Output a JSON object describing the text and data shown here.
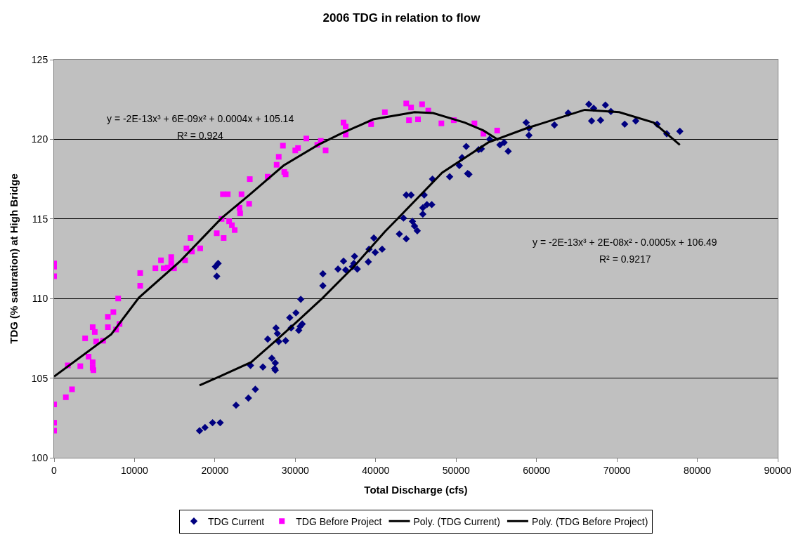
{
  "chart_data": {
    "type": "scatter",
    "title": "2006 TDG in relation to flow",
    "xlabel": "Total Discharge (cfs)",
    "ylabel": "TDG (% saturation) at High Bridge",
    "xlim": [
      0,
      90000
    ],
    "xticks": [
      0,
      10000,
      20000,
      30000,
      40000,
      50000,
      60000,
      70000,
      80000,
      90000
    ],
    "ylim": [
      100,
      125
    ],
    "yticks": [
      100,
      105,
      110,
      115,
      120,
      125
    ],
    "grid": "y",
    "legend": "bottom",
    "series": [
      {
        "name": "TDG Current",
        "marker": "diamond",
        "color": "#000080",
        "x": [
          18090,
          18770,
          19710,
          20660,
          20060,
          20400,
          20230,
          22630,
          24170,
          25030,
          24430,
          25970,
          27080,
          27510,
          27430,
          27510,
          26570,
          27600,
          27770,
          27940,
          28800,
          29310,
          29480,
          30080,
          30430,
          30600,
          30860,
          30680,
          33430,
          33430,
          35310,
          36000,
          36260,
          37110,
          37370,
          37280,
          37710,
          39080,
          39170,
          39770,
          39940,
          40800,
          42940,
          43800,
          43460,
          44570,
          44830,
          45170,
          45860,
          45860,
          46030,
          46370,
          46970,
          43800,
          44400,
          47060,
          49200,
          50400,
          50740,
          51260,
          51430,
          51600,
          52800,
          53140,
          54170,
          55450,
          55970,
          56480,
          58710,
          59060,
          59060,
          62230,
          63940,
          66510,
          67110,
          66850,
          67970,
          68570,
          69250,
          70970,
          72340,
          75000,
          76200,
          77830
        ],
        "values": [
          101.7,
          101.9,
          102.2,
          102.2,
          112.0,
          112.2,
          111.4,
          103.3,
          103.75,
          104.3,
          105.8,
          105.7,
          106.25,
          105.95,
          105.6,
          105.5,
          107.45,
          108.15,
          107.8,
          107.3,
          107.35,
          108.8,
          108.15,
          109.1,
          108.0,
          108.25,
          108.4,
          109.95,
          111.55,
          110.8,
          111.85,
          112.35,
          111.8,
          112.0,
          112.65,
          112.2,
          111.85,
          112.3,
          113.1,
          113.8,
          112.9,
          113.1,
          114.05,
          113.75,
          115.05,
          114.85,
          114.55,
          114.25,
          115.3,
          115.7,
          116.5,
          115.9,
          115.9,
          116.5,
          116.5,
          117.5,
          117.65,
          118.35,
          118.85,
          119.55,
          117.85,
          117.8,
          119.35,
          119.4,
          120.0,
          119.65,
          119.8,
          119.25,
          121.05,
          120.7,
          120.25,
          120.9,
          121.65,
          122.2,
          121.95,
          121.15,
          121.2,
          122.15,
          121.75,
          120.95,
          121.15,
          120.95,
          120.35,
          120.5
        ]
      },
      {
        "name": "TDG Before Project",
        "marker": "square",
        "color": "#ff00ff",
        "x": [
          0,
          0,
          0,
          0,
          0,
          0,
          1460,
          1710,
          2230,
          3260,
          3860,
          4290,
          4800,
          4800,
          4890,
          4800,
          5060,
          5230,
          6090,
          6690,
          6690,
          7370,
          7710,
          8140,
          7970,
          10710,
          10710,
          12600,
          13290,
          13630,
          14140,
          14570,
          14570,
          14910,
          16290,
          16460,
          16970,
          17140,
          18170,
          20230,
          21090,
          20830,
          21770,
          22110,
          22460,
          23140,
          23060,
          21000,
          21600,
          23310,
          24260,
          24340,
          26570,
          27680,
          27940,
          28630,
          28800,
          28460,
          30000,
          30340,
          31370,
          32740,
          33170,
          33770,
          36000,
          36260,
          36260,
          39430,
          41140,
          43800,
          44400,
          44140,
          45260,
          45770,
          46540,
          48170,
          49710,
          52280,
          53400,
          55110
        ],
        "values": [
          112.2,
          112.0,
          111.4,
          103.35,
          102.2,
          101.7,
          103.8,
          105.8,
          104.3,
          105.75,
          107.5,
          106.35,
          106.0,
          105.65,
          105.5,
          108.2,
          107.9,
          107.3,
          107.35,
          108.85,
          108.2,
          109.15,
          108.05,
          108.4,
          110.0,
          111.6,
          110.8,
          111.9,
          112.4,
          111.9,
          111.95,
          112.6,
          112.25,
          111.9,
          112.4,
          113.15,
          113.8,
          112.95,
          113.15,
          114.1,
          113.8,
          115.0,
          114.85,
          114.6,
          114.3,
          115.35,
          115.7,
          116.55,
          116.55,
          116.55,
          115.95,
          117.5,
          117.65,
          118.4,
          118.9,
          117.95,
          117.8,
          119.6,
          119.3,
          119.45,
          120.05,
          119.65,
          119.9,
          119.3,
          121.05,
          120.8,
          120.3,
          120.95,
          121.7,
          122.25,
          122.0,
          121.2,
          121.25,
          122.2,
          121.8,
          121.0,
          121.2,
          121.0,
          120.35,
          120.55
        ]
      },
      {
        "name": "Poly. (TDG Current)",
        "type": "line",
        "marker": "none",
        "line_style": "solid",
        "color": "#000000",
        "x": [
          18090,
          20570,
          24510,
          27680,
          30000,
          33430,
          37370,
          41140,
          42510,
          48260,
          54000,
          58800,
          66000,
          70290,
          74570,
          77830
        ],
        "values": [
          104.55,
          105.1,
          106.0,
          107.4,
          108.45,
          110.05,
          112.05,
          114.2,
          114.9,
          117.9,
          119.8,
          120.7,
          121.85,
          121.7,
          121.05,
          119.65
        ]
      },
      {
        "name": "Poly. (TDG Before Project)",
        "type": "line",
        "marker": "none",
        "line_style": "solid",
        "color": "#000000",
        "x": [
          0,
          7110,
          10540,
          15690,
          20830,
          24260,
          28540,
          32830,
          35660,
          39680,
          44830,
          47140,
          51080,
          53400,
          55280
        ],
        "values": [
          105.1,
          107.75,
          110.05,
          112.35,
          115.05,
          116.5,
          118.35,
          119.65,
          120.35,
          121.25,
          121.7,
          121.65,
          121.05,
          120.55,
          119.95
        ]
      }
    ],
    "annotations": [
      "y = -2E-13x³ + 6E-09x² + 0.0004x + 105.14",
      "R² = 0.924",
      "y = -2E-13x³ + 2E-08x² - 0.0005x + 106.49",
      "R² = 0.9217"
    ]
  }
}
